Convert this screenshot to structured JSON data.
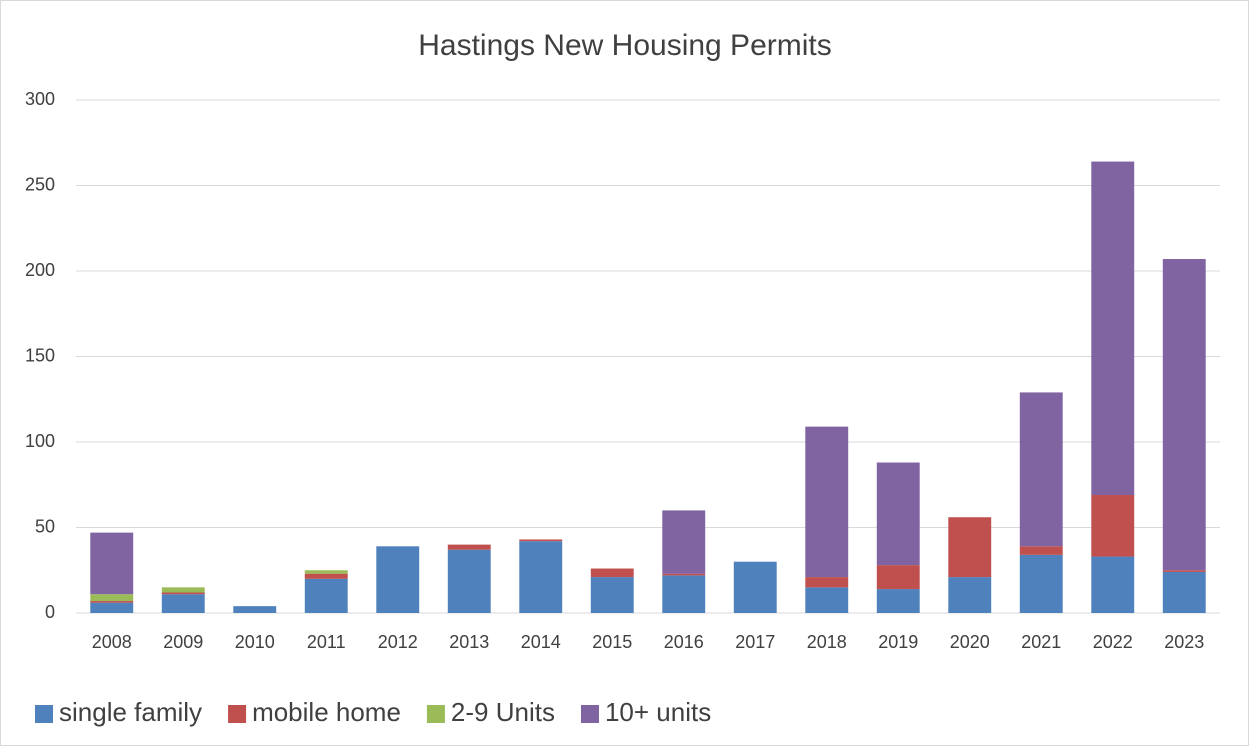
{
  "chart_data": {
    "type": "stacked_bar",
    "title": "Hastings New Housing Permits",
    "categories": [
      "2008",
      "2009",
      "2010",
      "2011",
      "2012",
      "2013",
      "2014",
      "2015",
      "2016",
      "2017",
      "2018",
      "2019",
      "2020",
      "2021",
      "2022",
      "2023"
    ],
    "series": [
      {
        "name": "single family",
        "color": "#4f81bd",
        "values": [
          6,
          11,
          4,
          20,
          39,
          37,
          42,
          21,
          22,
          30,
          15,
          14,
          21,
          34,
          33,
          24
        ]
      },
      {
        "name": "mobile home",
        "color": "#c0504d",
        "values": [
          1,
          1,
          0,
          3,
          0,
          3,
          1,
          5,
          1,
          0,
          6,
          14,
          35,
          5,
          36,
          1
        ]
      },
      {
        "name": "2-9 Units",
        "color": "#9bbb59",
        "values": [
          4,
          3,
          0,
          2,
          0,
          0,
          0,
          0,
          0,
          0,
          0,
          0,
          0,
          0,
          0,
          0
        ]
      },
      {
        "name": "10+ units",
        "color": "#8064a2",
        "values": [
          36,
          0,
          0,
          0,
          0,
          0,
          0,
          0,
          37,
          0,
          88,
          60,
          0,
          90,
          195,
          182
        ]
      }
    ],
    "ylim": [
      0,
      300
    ],
    "yticks": [
      0,
      50,
      100,
      150,
      200,
      250,
      300
    ],
    "grid": true,
    "legend": "bottom"
  }
}
